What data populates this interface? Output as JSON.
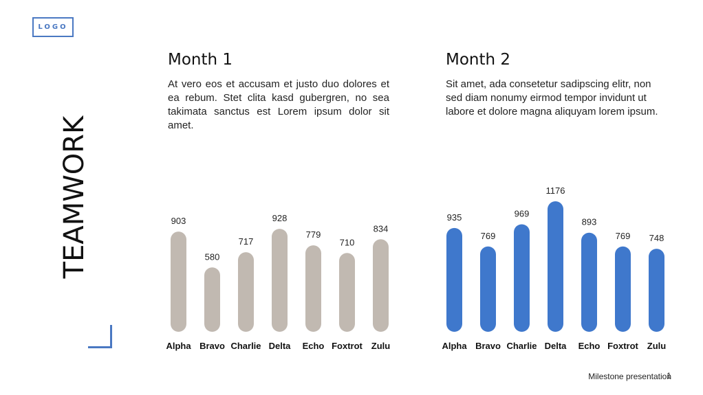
{
  "logo": "LOGO",
  "side_title": "TEAMWORK",
  "month1": {
    "title": "Month 1",
    "body": "At vero eos et accusam et justo duo dolores et ea rebum. Stet clita kasd gubergren, no sea takimata sanctus est Lorem ipsum dolor sit amet."
  },
  "month2": {
    "title": "Month 2",
    "body": "Sit amet, ada consetetur sadipscing elitr, non sed diam nonumy eirmod tempor invidunt ut labore et dolore magna aliquyam lorem ipsum."
  },
  "footer": {
    "text": "Milestone presentation",
    "page": "1"
  },
  "colors": {
    "month1_bar": "#c1b9b1",
    "month2_bar": "#3f78cc",
    "accent": "#4a78c2"
  },
  "chart_data": [
    {
      "type": "bar",
      "categories": [
        "Alpha",
        "Bravo",
        "Charlie",
        "Delta",
        "Echo",
        "Foxtrot",
        "Zulu"
      ],
      "values": [
        903,
        580,
        717,
        928,
        779,
        710,
        834
      ],
      "title": "",
      "xlabel": "",
      "ylabel": "",
      "ylim": [
        0,
        1176
      ],
      "data_labels": true
    },
    {
      "type": "bar",
      "categories": [
        "Alpha",
        "Bravo",
        "Charlie",
        "Delta",
        "Echo",
        "Foxtrot",
        "Zulu"
      ],
      "values": [
        935,
        769,
        969,
        1176,
        893,
        769,
        748
      ],
      "title": "",
      "xlabel": "",
      "ylabel": "",
      "ylim": [
        0,
        1176
      ],
      "data_labels": true
    }
  ]
}
